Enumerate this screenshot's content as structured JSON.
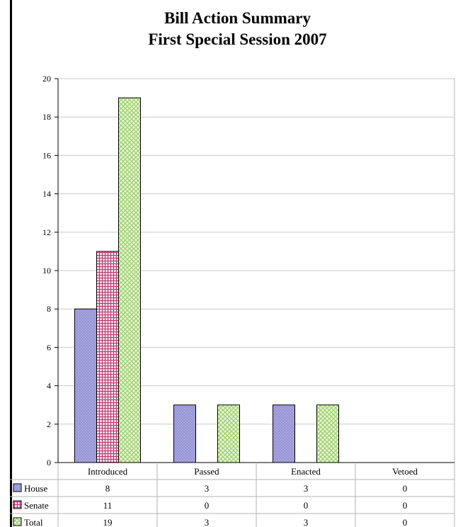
{
  "title": "Bill Action Summary",
  "subtitle": "First Special Session 2007",
  "chart_data": {
    "type": "bar",
    "title": "Bill Action Summary",
    "subtitle": "First Special Session 2007",
    "categories": [
      "Introduced",
      "Passed",
      "Enacted",
      "Vetoed"
    ],
    "series": [
      {
        "name": "House",
        "values": [
          8,
          3,
          3,
          0
        ],
        "color": "#9b98d8",
        "pattern": "dots"
      },
      {
        "name": "Senate",
        "values": [
          11,
          0,
          0,
          0
        ],
        "color": "#b8336a",
        "pattern": "grid"
      },
      {
        "name": "Total",
        "values": [
          19,
          3,
          3,
          0
        ],
        "color": "#c6e6a4",
        "pattern": "lattice"
      }
    ],
    "ylim": [
      0,
      20
    ],
    "yticks": [
      0,
      2,
      4,
      6,
      8,
      10,
      12,
      14,
      16,
      18,
      20
    ],
    "grid": true,
    "legend": "data-table-left"
  }
}
